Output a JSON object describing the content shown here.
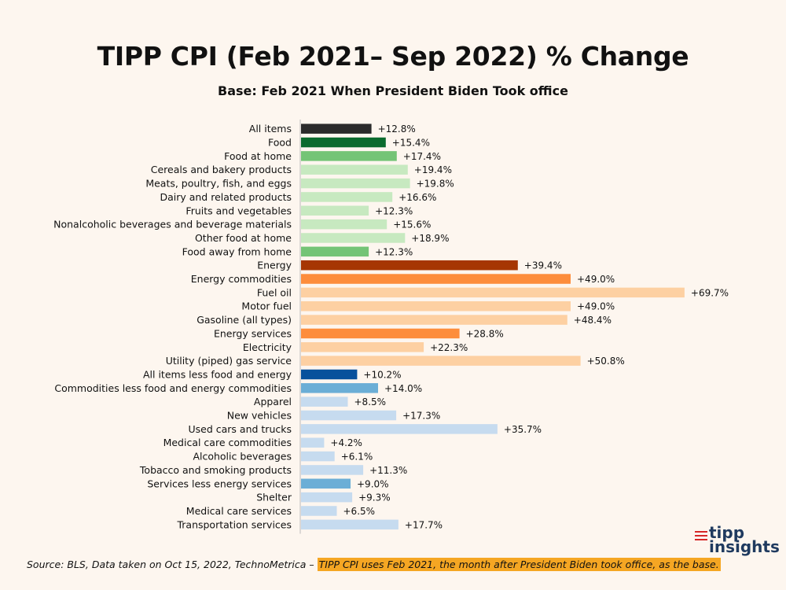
{
  "chart_data": {
    "type": "bar",
    "orientation": "horizontal",
    "title": "TIPP CPI (Feb 2021– Sep 2022) % Change",
    "subtitle": "Base: Feb 2021 When President Biden Took office",
    "xlabel": "",
    "ylabel": "",
    "xlim": [
      0,
      70
    ],
    "grid": false,
    "categories": [
      "All items",
      "Food",
      "Food at home",
      "Cereals and bakery products",
      "Meats, poultry, fish, and eggs",
      "Dairy and related products",
      "Fruits and vegetables",
      "Nonalcoholic beverages and beverage materials",
      "Other food at home",
      "Food away from home",
      "Energy",
      "Energy commodities",
      "Fuel oil",
      "Motor fuel",
      "Gasoline (all types)",
      "Energy services",
      "Electricity",
      "Utility (piped) gas service",
      "All items less food and energy",
      "Commodities less food and energy commodities",
      "Apparel",
      "New vehicles",
      "Used cars and trucks",
      "Medical care commodities",
      "Alcoholic beverages",
      "Tobacco and smoking products",
      "Services less energy services",
      "Shelter",
      "Medical care services",
      "Transportation services"
    ],
    "values": [
      12.8,
      15.4,
      17.4,
      19.4,
      19.8,
      16.6,
      12.3,
      15.6,
      18.9,
      12.3,
      39.4,
      49.0,
      69.7,
      49.0,
      48.4,
      28.8,
      22.3,
      50.8,
      10.2,
      14.0,
      8.5,
      17.3,
      35.7,
      4.2,
      6.1,
      11.3,
      9.0,
      9.3,
      6.5,
      17.7
    ],
    "value_labels": [
      "+12.8%",
      "+15.4%",
      "+17.4%",
      "+19.4%",
      "+19.8%",
      "+16.6%",
      "+12.3%",
      "+15.6%",
      "+18.9%",
      "+12.3%",
      "+39.4%",
      "+49.0%",
      "+69.7%",
      "+49.0%",
      "+48.4%",
      "+28.8%",
      "+22.3%",
      "+50.8%",
      "+10.2%",
      "+14.0%",
      "+8.5%",
      "+17.3%",
      "+35.7%",
      "+4.2%",
      "+6.1%",
      "+11.3%",
      "+9.0%",
      "+9.3%",
      "+6.5%",
      "+17.7%"
    ],
    "colors": [
      "#2b2b2b",
      "#0b6b2e",
      "#74c476",
      "#c7e9c0",
      "#c7e9c0",
      "#c7e9c0",
      "#c7e9c0",
      "#c7e9c0",
      "#c7e9c0",
      "#74c476",
      "#a63603",
      "#fd8d3c",
      "#fdd0a2",
      "#fdd0a2",
      "#fdd0a2",
      "#fd8d3c",
      "#fdd0a2",
      "#fdd0a2",
      "#08519c",
      "#6baed6",
      "#c6dbef",
      "#c6dbef",
      "#c6dbef",
      "#c6dbef",
      "#c6dbef",
      "#c6dbef",
      "#6baed6",
      "#c6dbef",
      "#c6dbef",
      "#c6dbef"
    ]
  },
  "footer": {
    "source_text": "Source:  BLS, Data taken on Oct 15, 2022, TechnoMetrica – ",
    "highlight_text": "TIPP CPI uses Feb 2021, the month after President Biden took office, as the base."
  },
  "logo": {
    "word1": "tipp",
    "word2": "insights",
    "color": "#1f3a5f"
  }
}
